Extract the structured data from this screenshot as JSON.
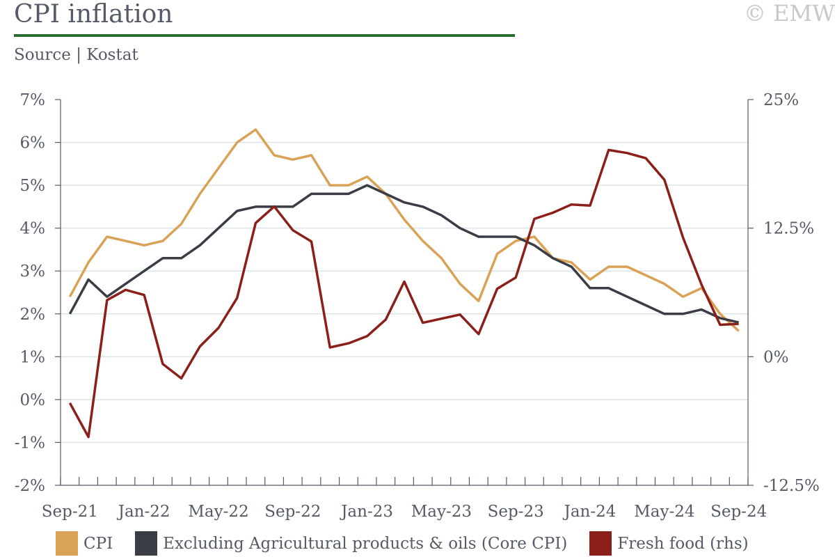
{
  "header": {
    "title": "CPI inflation",
    "source": "Source | Kostat",
    "copyright": "© EMW"
  },
  "colors": {
    "cpi": "#d9a256",
    "core": "#3a3d46",
    "fresh": "#8b1f1a",
    "grid": "#dbe4ea",
    "axis": "#555a66",
    "title_underline": "#2e6b2e"
  },
  "chart_data": {
    "type": "line",
    "title": "CPI inflation",
    "x": [
      "Sep-21",
      "Oct-21",
      "Nov-21",
      "Dec-21",
      "Jan-22",
      "Feb-22",
      "Mar-22",
      "Apr-22",
      "May-22",
      "Jun-22",
      "Jul-22",
      "Aug-22",
      "Sep-22",
      "Oct-22",
      "Nov-22",
      "Dec-22",
      "Jan-23",
      "Feb-23",
      "Mar-23",
      "Apr-23",
      "May-23",
      "Jun-23",
      "Jul-23",
      "Aug-23",
      "Sep-23",
      "Oct-23",
      "Nov-23",
      "Dec-23",
      "Jan-24",
      "Feb-24",
      "Mar-24",
      "Apr-24",
      "May-24",
      "Jun-24",
      "Jul-24",
      "Aug-24",
      "Sep-24"
    ],
    "x_tick_labels": [
      "Sep-21",
      "Jan-22",
      "May-22",
      "Sep-22",
      "Jan-23",
      "May-23",
      "Sep-23",
      "Jan-24",
      "May-24",
      "Sep-24"
    ],
    "y_left_ticks": [
      "7%",
      "6%",
      "5%",
      "4%",
      "3%",
      "2%",
      "1%",
      "0%",
      "-1%",
      "-2%"
    ],
    "y_right_ticks": [
      "25%",
      "12.5%",
      "0%",
      "-12.5%"
    ],
    "ylim_left": [
      -2,
      7
    ],
    "ylim_right": [
      -12.5,
      25
    ],
    "grid": true,
    "legend_position": "bottom",
    "series": [
      {
        "name": "CPI",
        "axis": "left",
        "color_key": "cpi",
        "values": [
          2.4,
          3.2,
          3.8,
          3.7,
          3.6,
          3.7,
          4.1,
          4.8,
          5.4,
          6.0,
          6.3,
          5.7,
          5.6,
          5.7,
          5.0,
          5.0,
          5.2,
          4.8,
          4.2,
          3.7,
          3.3,
          2.7,
          2.3,
          3.4,
          3.7,
          3.8,
          3.3,
          3.2,
          2.8,
          3.1,
          3.1,
          2.9,
          2.7,
          2.4,
          2.6,
          2.0,
          1.6
        ]
      },
      {
        "name": "Excluding Agricultural products & oils (Core CPI)",
        "axis": "left",
        "color_key": "core",
        "values": [
          2.0,
          2.8,
          2.4,
          2.7,
          3.0,
          3.3,
          3.3,
          3.6,
          4.0,
          4.4,
          4.5,
          4.5,
          4.5,
          4.8,
          4.8,
          4.8,
          5.0,
          4.8,
          4.6,
          4.5,
          4.3,
          4.0,
          3.8,
          3.8,
          3.8,
          3.6,
          3.3,
          3.1,
          2.6,
          2.6,
          2.4,
          2.2,
          2.0,
          2.0,
          2.1,
          1.9,
          1.8
        ]
      },
      {
        "name": "Fresh food (rhs)",
        "axis": "right",
        "color_key": "fresh",
        "values": [
          -4.5,
          -7.8,
          5.5,
          6.5,
          6.0,
          -0.7,
          -2.1,
          1.0,
          2.8,
          5.7,
          13.0,
          14.6,
          12.3,
          11.2,
          0.9,
          1.3,
          2.0,
          3.6,
          7.3,
          3.3,
          3.7,
          4.1,
          2.2,
          6.6,
          7.7,
          13.4,
          14.0,
          14.8,
          14.7,
          20.1,
          19.8,
          19.3,
          17.2,
          11.6,
          7.0,
          3.1,
          3.2
        ]
      }
    ]
  }
}
